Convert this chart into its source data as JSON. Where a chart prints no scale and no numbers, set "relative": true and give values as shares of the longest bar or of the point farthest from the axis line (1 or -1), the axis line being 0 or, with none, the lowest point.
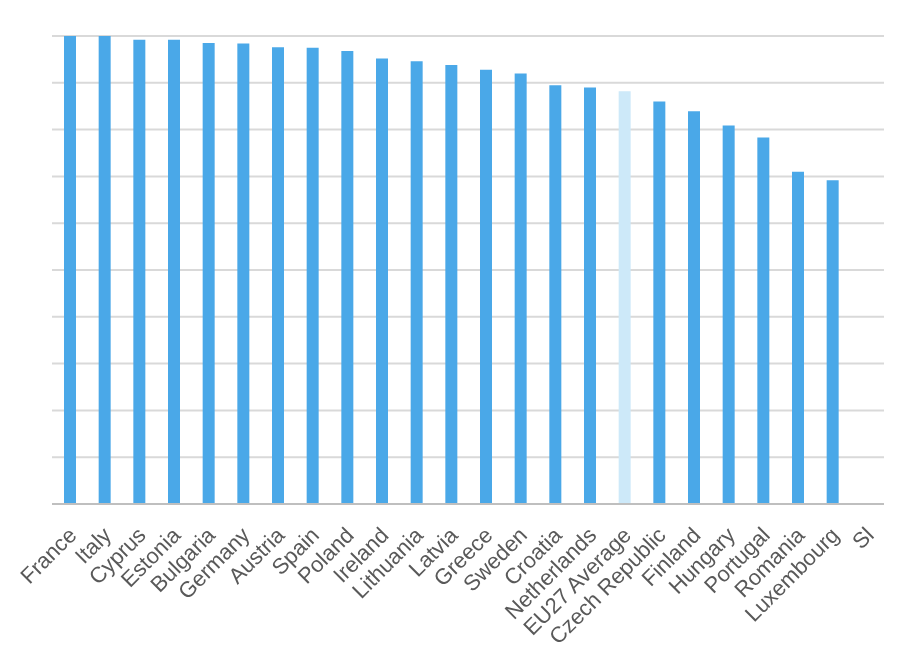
{
  "chart_data": {
    "type": "bar",
    "relative": true,
    "grid": "y",
    "categories": [
      "France",
      "Italy",
      "Cyprus",
      "Estonia",
      "Bulgaria",
      "Germany",
      "Austria",
      "Spain",
      "Poland",
      "Ireland",
      "Lithuania",
      "Latvia",
      "Greece",
      "Sweden",
      "Croatia",
      "Netherlands",
      "EU27 Average",
      "Czech Republic",
      "Finland",
      "Hungary",
      "Portugal",
      "Romania",
      "Luxembourg",
      "Sl"
    ],
    "values": [
      1,
      1,
      0.992,
      0.992,
      0.985,
      0.984,
      0.976,
      0.975,
      0.968,
      0.952,
      0.946,
      0.938,
      0.928,
      0.92,
      0.895,
      0.89,
      0.882,
      0.86,
      0.839,
      0.809,
      0.783,
      0.71,
      0.692,
      null
    ],
    "colors": [
      "#4aa8e8",
      "#4aa8e8",
      "#4aa8e8",
      "#4aa8e8",
      "#4aa8e8",
      "#4aa8e8",
      "#4aa8e8",
      "#4aa8e8",
      "#4aa8e8",
      "#4aa8e8",
      "#4aa8e8",
      "#4aa8e8",
      "#4aa8e8",
      "#4aa8e8",
      "#4aa8e8",
      "#4aa8e8",
      "#cde9f9",
      "#4aa8e8",
      "#4aa8e8",
      "#4aa8e8",
      "#4aa8e8",
      "#4aa8e8",
      "#4aa8e8",
      "#4aa8e8"
    ]
  }
}
